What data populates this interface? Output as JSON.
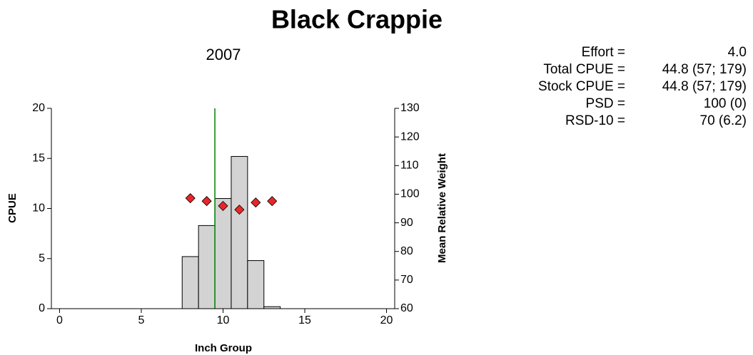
{
  "chart_data": {
    "type": "histogram",
    "title": "Black Crappie",
    "subtitle": "2007",
    "x_label": "Inch Group",
    "y_label": "CPUE",
    "y2_label": "Mean Relative Weight",
    "bins": [
      7.5,
      8.5,
      9.5,
      10.5,
      11.5,
      12.5,
      13.5
    ],
    "values": [
      5.2,
      8.3,
      11,
      15.2,
      4.8,
      0.2
    ],
    "color": "#d3d3d3",
    "xlim": [
      -0.5,
      20.5
    ],
    "xticks": [
      0,
      5,
      10,
      15,
      20
    ],
    "ylim": [
      0,
      20
    ],
    "yticks": [
      0,
      5,
      10,
      15,
      20
    ],
    "y2lim": [
      60,
      130
    ],
    "y2ticks": [
      60,
      70,
      80,
      90,
      100,
      110,
      120,
      130
    ],
    "series": [
      {
        "x": [
          8,
          9,
          10,
          11,
          12,
          13
        ],
        "values": [
          98.6,
          97.6,
          95.9,
          94.6,
          97.1,
          97.6
        ],
        "axis": "y2",
        "color": "#e8262a",
        "marker": "diamond"
      }
    ],
    "reference_line": {
      "x": 9.5,
      "color": "#008000"
    }
  },
  "stats": [
    {
      "label": "Effort =",
      "value": "4.0"
    },
    {
      "label": "Total CPUE =",
      "value": "44.8 (57; 179)"
    },
    {
      "label": "Stock CPUE =",
      "value": "44.8 (57; 179)"
    },
    {
      "label": "PSD =",
      "value": "100 (0)"
    },
    {
      "label": "RSD-10 =",
      "value": "70 (6.2)"
    }
  ]
}
